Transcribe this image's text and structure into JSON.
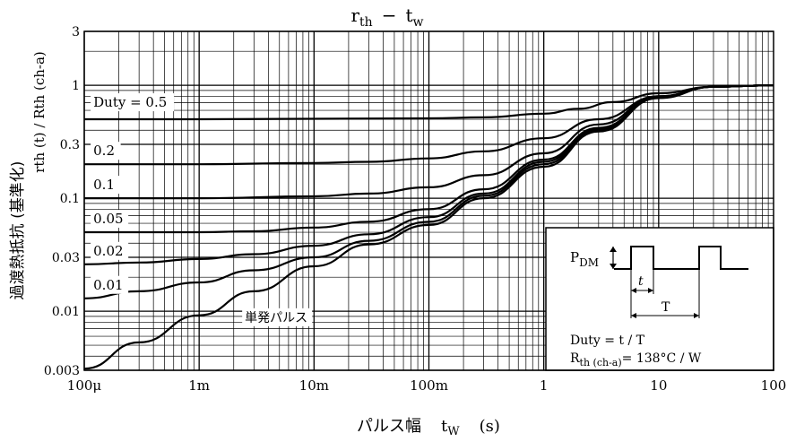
{
  "chart_data": {
    "type": "line",
    "title": "r_th − t_w",
    "title_main": "r",
    "title_main_sub": "th",
    "title_sep": "−",
    "title_x": "t",
    "title_x_sub": "w",
    "xlabel": "パルス幅",
    "xlabel_sym": "t",
    "xlabel_sym_sub": "W",
    "xlabel_unit": "(s)",
    "ylabel": "過渡熱抵抗 (基準化)",
    "ylabel_sym": "rth (t) / Rth (ch-a)",
    "x_scale": "log",
    "y_scale": "log",
    "xlim": [
      0.0001,
      100
    ],
    "ylim": [
      0.003,
      3
    ],
    "x_ticks": [
      {
        "value": 0.0001,
        "label": "100μ"
      },
      {
        "value": 0.001,
        "label": "1m"
      },
      {
        "value": 0.01,
        "label": "10m"
      },
      {
        "value": 0.1,
        "label": "100m"
      },
      {
        "value": 1,
        "label": "1"
      },
      {
        "value": 10,
        "label": "10"
      },
      {
        "value": 100,
        "label": "100"
      }
    ],
    "y_ticks": [
      {
        "value": 3,
        "label": "3"
      },
      {
        "value": 1,
        "label": "1"
      },
      {
        "value": 0.3,
        "label": "0.3"
      },
      {
        "value": 0.1,
        "label": "0.1"
      },
      {
        "value": 0.03,
        "label": "0.03"
      },
      {
        "value": 0.01,
        "label": "0.01"
      },
      {
        "value": 0.003,
        "label": "0.003"
      }
    ],
    "grid": true,
    "series": [
      {
        "name": "Duty = 0.5",
        "label": "Duty = 0.5",
        "x": [
          0.0001,
          0.001,
          0.01,
          0.1,
          0.3,
          1,
          2,
          4,
          10,
          30,
          100
        ],
        "y": [
          0.5,
          0.5,
          0.505,
          0.51,
          0.52,
          0.56,
          0.62,
          0.71,
          0.85,
          0.97,
          1.0
        ]
      },
      {
        "name": "0.2",
        "label": "0.2",
        "x": [
          0.0001,
          0.001,
          0.01,
          0.03,
          0.1,
          0.3,
          1,
          3,
          10,
          30,
          100
        ],
        "y": [
          0.2,
          0.2,
          0.205,
          0.21,
          0.225,
          0.26,
          0.34,
          0.5,
          0.8,
          0.97,
          1.0
        ]
      },
      {
        "name": "0.1",
        "label": "0.1",
        "x": [
          0.0001,
          0.001,
          0.01,
          0.03,
          0.1,
          0.3,
          1,
          3,
          10,
          30,
          100
        ],
        "y": [
          0.1,
          0.1,
          0.104,
          0.11,
          0.125,
          0.16,
          0.25,
          0.45,
          0.8,
          0.97,
          1.0
        ]
      },
      {
        "name": "0.05",
        "label": "0.05",
        "x": [
          0.0001,
          0.001,
          0.003,
          0.01,
          0.03,
          0.1,
          0.3,
          1,
          3,
          10,
          30,
          100
        ],
        "y": [
          0.05,
          0.05,
          0.051,
          0.055,
          0.062,
          0.08,
          0.12,
          0.22,
          0.42,
          0.79,
          0.97,
          1.0
        ]
      },
      {
        "name": "0.02",
        "label": "0.02",
        "x": [
          0.0001,
          0.0003,
          0.001,
          0.003,
          0.01,
          0.03,
          0.1,
          0.3,
          1,
          3,
          10,
          30,
          100
        ],
        "y": [
          0.026,
          0.027,
          0.029,
          0.032,
          0.038,
          0.048,
          0.068,
          0.11,
          0.21,
          0.41,
          0.78,
          0.97,
          1.0
        ]
      },
      {
        "name": "0.01",
        "label": "0.01",
        "x": [
          0.0001,
          0.0003,
          0.001,
          0.003,
          0.01,
          0.03,
          0.1,
          0.3,
          1,
          3,
          10,
          30,
          100
        ],
        "y": [
          0.013,
          0.015,
          0.018,
          0.023,
          0.03,
          0.042,
          0.062,
          0.105,
          0.2,
          0.4,
          0.78,
          0.97,
          1.0
        ]
      },
      {
        "name": "単発パルス",
        "label": "単発パルス",
        "x": [
          0.0001,
          0.0003,
          0.001,
          0.003,
          0.01,
          0.03,
          0.1,
          0.3,
          1,
          3,
          10,
          30,
          100
        ],
        "y": [
          0.0031,
          0.0053,
          0.0092,
          0.015,
          0.025,
          0.039,
          0.058,
          0.1,
          0.19,
          0.39,
          0.77,
          0.97,
          1.0
        ]
      }
    ],
    "inset": {
      "pdm_label": "P",
      "pdm_sub": "DM",
      "t_label": "t",
      "T_label": "T",
      "duty_text": "Duty = t / T",
      "rth_main": "R",
      "rth_sub": "th (ch-a)",
      "rth_value": "= 138°C / W"
    }
  }
}
